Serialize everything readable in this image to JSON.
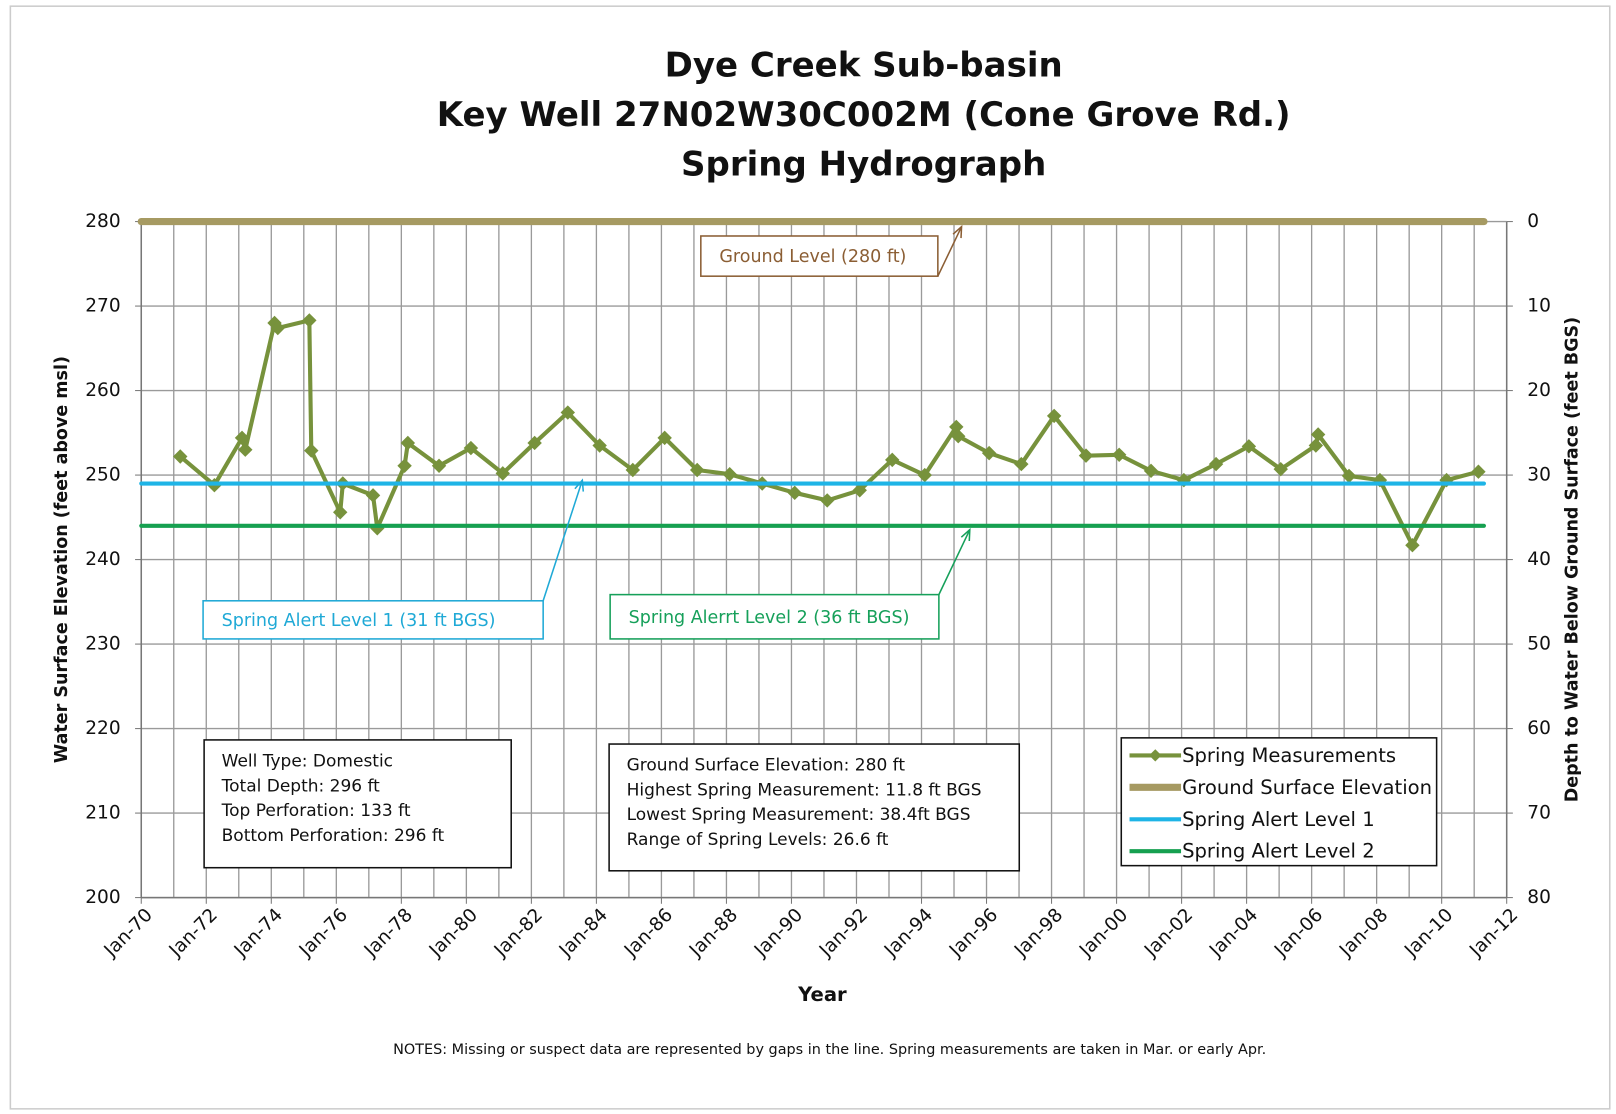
{
  "chart_data": {
    "type": "line",
    "title": [
      "Dye Creek Sub-basin",
      "Key Well 27N02W30C002M (Cone Grove Rd.)",
      "Spring Hydrograph"
    ],
    "xlabel": "Year",
    "ylabel": "Water Surface Elevation (feet above msl)",
    "y2label": "Depth to Water Below Ground Surface (feet BGS)",
    "notes": "NOTES:  Missing or suspect data are represented by gaps in the line.  Spring measurements are taken in Mar. or early Apr.",
    "xlim": [
      1970,
      2012
    ],
    "xticks": [
      {
        "value": 1970,
        "label": "Jan-70"
      },
      {
        "value": 1972,
        "label": "Jan-72"
      },
      {
        "value": 1974,
        "label": "Jan-74"
      },
      {
        "value": 1976,
        "label": "Jan-76"
      },
      {
        "value": 1978,
        "label": "Jan-78"
      },
      {
        "value": 1980,
        "label": "Jan-80"
      },
      {
        "value": 1982,
        "label": "Jan-82"
      },
      {
        "value": 1984,
        "label": "Jan-84"
      },
      {
        "value": 1986,
        "label": "Jan-86"
      },
      {
        "value": 1988,
        "label": "Jan-88"
      },
      {
        "value": 1990,
        "label": "Jan-90"
      },
      {
        "value": 1992,
        "label": "Jan-92"
      },
      {
        "value": 1994,
        "label": "Jan-94"
      },
      {
        "value": 1996,
        "label": "Jan-96"
      },
      {
        "value": 1998,
        "label": "Jan-98"
      },
      {
        "value": 2000,
        "label": "Jan-00"
      },
      {
        "value": 2002,
        "label": "Jan-02"
      },
      {
        "value": 2004,
        "label": "Jan-04"
      },
      {
        "value": 2006,
        "label": "Jan-06"
      },
      {
        "value": 2008,
        "label": "Jan-08"
      },
      {
        "value": 2010,
        "label": "Jan-10"
      },
      {
        "value": 2012,
        "label": "Jan-12"
      }
    ],
    "xminorticks": [
      1971,
      1973,
      1975,
      1977,
      1979,
      1981,
      1983,
      1985,
      1987,
      1989,
      1991,
      1993,
      1995,
      1997,
      1999,
      2001,
      2003,
      2005,
      2007,
      2009,
      2011
    ],
    "ylim": [
      200,
      280
    ],
    "yticks": [
      200,
      210,
      220,
      230,
      240,
      250,
      260,
      270,
      280
    ],
    "y2lim": [
      80,
      0
    ],
    "y2ticks": [
      0,
      10,
      20,
      30,
      40,
      50,
      60,
      70,
      80
    ],
    "grid": true,
    "series": [
      {
        "name": "Spring Measurements",
        "color": "#77923c",
        "marker": "diamond",
        "x": [
          1971.2,
          1972.25,
          1973.1,
          1973.2,
          1974.1,
          1974.2,
          1975.17,
          1975.23,
          1976.12,
          1976.2,
          1977.13,
          1977.26,
          1978.1,
          1978.2,
          1979.16,
          1980.14,
          1981.12,
          1982.1,
          1983.12,
          1984.1,
          1985.12,
          1986.1,
          1987.1,
          1988.1,
          1989.1,
          1990.1,
          1991.1,
          1992.1,
          1993.1,
          1994.1,
          1995.07,
          1995.13,
          1996.08,
          1997.07,
          1998.08,
          1999.06,
          2000.08,
          2001.06,
          2002.07,
          2003.06,
          2004.07,
          2005.05,
          2006.13,
          2006.2,
          2007.15,
          2008.1,
          2009.1,
          2010.15,
          2011.13
        ],
        "values": [
          252.2,
          248.8,
          254.4,
          253.0,
          268.0,
          267.4,
          268.3,
          252.9,
          245.6,
          249.0,
          247.6,
          243.7,
          251.1,
          253.8,
          251.1,
          253.2,
          250.2,
          253.8,
          257.4,
          253.5,
          250.6,
          254.4,
          250.6,
          250.1,
          249.0,
          247.9,
          247.0,
          248.2,
          251.8,
          250.0,
          255.7,
          254.6,
          252.6,
          251.3,
          257.0,
          252.3,
          252.4,
          250.5,
          249.4,
          251.3,
          253.4,
          250.7,
          253.5,
          254.8,
          249.9,
          249.4,
          241.7,
          249.4,
          250.4
        ]
      },
      {
        "name": "Ground Surface Elevation",
        "color": "#a69a62",
        "x": [
          1970,
          2011.3
        ],
        "values": [
          280,
          280
        ]
      },
      {
        "name": "Spring Alert Level 1",
        "color": "#1eb4e6",
        "x": [
          1970,
          2011.3
        ],
        "values": [
          249,
          249
        ]
      },
      {
        "name": "Spring Alert Level 2",
        "color": "#16a050",
        "x": [
          1970,
          2011.3
        ],
        "values": [
          244,
          244
        ]
      }
    ],
    "annotations": [
      {
        "text": "Ground Level (280 ft)",
        "color": "#8b5e34"
      },
      {
        "text": "Spring Alert Level 1 (31 ft BGS)",
        "color": "#1fa9d6"
      },
      {
        "text": "Spring Alerrt Level 2 (36 ft BGS)",
        "color": "#16a05a"
      }
    ],
    "well_info": [
      "Well Type:  Domestic",
      "Total Depth:  296 ft",
      "Top Perforation:   133 ft",
      "Bottom Perforation:  296 ft"
    ],
    "stats": [
      "Ground Surface Elevation:  280 ft",
      "Highest Spring Measurement: 11.8 ft BGS",
      "Lowest Spring Measurement:  38.4ft BGS",
      "Range of Spring Levels:  26.6 ft"
    ],
    "legend": "lower right"
  }
}
